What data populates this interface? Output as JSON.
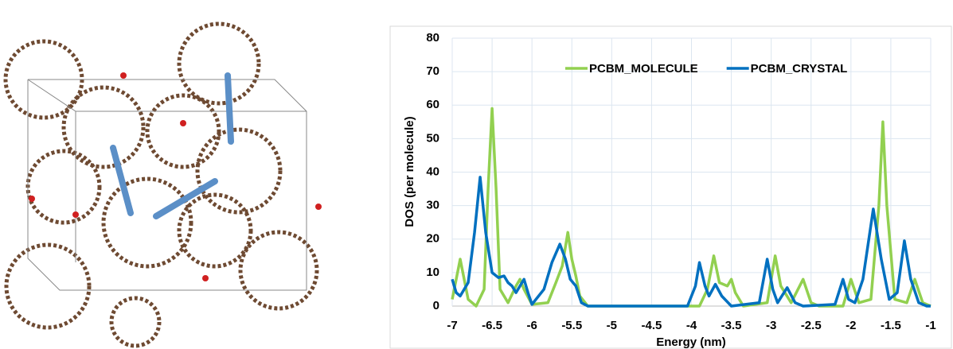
{
  "chart_data": {
    "type": "line",
    "x_label": "Energy (nm)",
    "y_label": "DOS (per molecule)",
    "xlim": [
      -7,
      -1
    ],
    "xticks": [
      -7,
      -6.5,
      -6,
      -5.5,
      -5,
      -4.5,
      -4,
      -3.5,
      -3,
      -2.5,
      -2,
      -1.5,
      -1
    ],
    "ylim": [
      0,
      80
    ],
    "yticks": [
      0,
      10,
      20,
      30,
      40,
      50,
      60,
      70,
      80
    ],
    "grid": true,
    "legend": "top",
    "series": [
      {
        "name": "PCBM_MOLECULE",
        "color": "#92d050",
        "x": [
          -7,
          -6.95,
          -6.9,
          -6.85,
          -6.8,
          -6.7,
          -6.6,
          -6.55,
          -6.5,
          -6.45,
          -6.4,
          -6.3,
          -6.2,
          -6.15,
          -6.1,
          -6.0,
          -5.8,
          -5.7,
          -5.62,
          -5.55,
          -5.5,
          -5.45,
          -5.4,
          -5.3,
          -3.9,
          -3.8,
          -3.72,
          -3.65,
          -3.55,
          -3.5,
          -3.45,
          -3.35,
          -3.05,
          -2.95,
          -2.88,
          -2.75,
          -2.6,
          -2.5,
          -2.4,
          -2.1,
          -2.0,
          -1.9,
          -1.75,
          -1.65,
          -1.6,
          -1.55,
          -1.45,
          -1.3,
          -1.2,
          -1.1,
          -1
        ],
        "values": [
          2,
          8,
          14,
          8,
          2,
          0,
          5,
          35,
          59,
          35,
          5,
          1,
          6,
          8,
          5,
          0.5,
          1,
          7,
          12,
          22,
          14,
          9,
          3,
          0,
          0,
          5,
          15,
          7,
          6,
          8,
          4,
          0,
          1,
          15,
          6,
          1,
          8,
          1,
          0,
          0,
          8,
          1,
          2,
          30,
          55,
          30,
          2,
          1,
          8,
          1,
          0
        ]
      },
      {
        "name": "PCBM_CRYSTAL",
        "color": "#0070c0",
        "x": [
          -7,
          -6.95,
          -6.9,
          -6.8,
          -6.72,
          -6.65,
          -6.58,
          -6.5,
          -6.42,
          -6.35,
          -6.3,
          -6.25,
          -6.2,
          -6.15,
          -6.1,
          -6.05,
          -6.0,
          -5.85,
          -5.75,
          -5.65,
          -5.58,
          -5.52,
          -5.45,
          -5.38,
          -5.3,
          -4.05,
          -3.95,
          -3.9,
          -3.83,
          -3.78,
          -3.7,
          -3.62,
          -3.5,
          -3.15,
          -3.05,
          -2.98,
          -2.92,
          -2.8,
          -2.7,
          -2.6,
          -2.2,
          -2.1,
          -2.03,
          -1.95,
          -1.85,
          -1.72,
          -1.62,
          -1.52,
          -1.42,
          -1.33,
          -1.25,
          -1.15,
          -1.05,
          -1
        ],
        "values": [
          8,
          4,
          3,
          7,
          22,
          38.5,
          22,
          10,
          8.5,
          9,
          7,
          6,
          4,
          6,
          8,
          4,
          0.5,
          5,
          13,
          18.5,
          14,
          8,
          6,
          1,
          0,
          0,
          6,
          13,
          6,
          3,
          6.5,
          3,
          0,
          1,
          14,
          5,
          1,
          5.5,
          1,
          0,
          0.5,
          8,
          2,
          1,
          8,
          29,
          14,
          2,
          4,
          19.5,
          8,
          1,
          0,
          0
        ]
      }
    ]
  }
}
